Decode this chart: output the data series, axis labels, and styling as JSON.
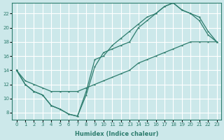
{
  "xlabel": "Humidex (Indice chaleur)",
  "bg_color": "#cce8ea",
  "grid_color": "#ffffff",
  "line_color": "#2e7d6e",
  "xlim": [
    -0.5,
    23.5
  ],
  "ylim": [
    7,
    23.5
  ],
  "xticks": [
    0,
    1,
    2,
    3,
    4,
    5,
    6,
    7,
    8,
    9,
    10,
    11,
    12,
    13,
    14,
    15,
    16,
    17,
    18,
    19,
    20,
    21,
    22,
    23
  ],
  "yticks": [
    8,
    10,
    12,
    14,
    16,
    18,
    20,
    22
  ],
  "curve1_x": [
    0,
    1,
    2,
    3,
    4,
    5,
    6,
    7,
    8,
    9,
    10,
    11,
    12,
    13,
    14,
    15,
    16,
    17,
    18,
    19,
    20,
    21,
    22,
    23
  ],
  "curve1_y": [
    14,
    12,
    11,
    10.5,
    9,
    8.5,
    7.8,
    7.5,
    10.5,
    14.5,
    16.5,
    17,
    17.5,
    18,
    20,
    21,
    22,
    23,
    23.5,
    22.5,
    22,
    21,
    19,
    18
  ],
  "curve2_x": [
    0,
    1,
    2,
    3,
    4,
    5,
    6,
    7,
    8,
    9,
    10,
    11,
    12,
    13,
    14,
    15,
    16,
    17,
    18,
    19,
    20,
    21,
    22,
    23
  ],
  "curve2_y": [
    14,
    12,
    11,
    10.5,
    9,
    8.5,
    7.8,
    7.5,
    11,
    15.5,
    16,
    17.5,
    18.5,
    19.5,
    20.5,
    21.5,
    22,
    23,
    23.5,
    22.5,
    22,
    21.5,
    19.5,
    18
  ],
  "curve3_x": [
    0,
    1,
    2,
    3,
    4,
    5,
    6,
    7,
    8,
    9,
    10,
    11,
    12,
    13,
    14,
    15,
    16,
    17,
    18,
    19,
    20,
    21,
    22,
    23
  ],
  "curve3_y": [
    14,
    12.5,
    12,
    11.5,
    11,
    11,
    11,
    11,
    11.5,
    12,
    12.5,
    13,
    13.5,
    14,
    15,
    15.5,
    16,
    16.5,
    17,
    17.5,
    18,
    18,
    18,
    18
  ]
}
